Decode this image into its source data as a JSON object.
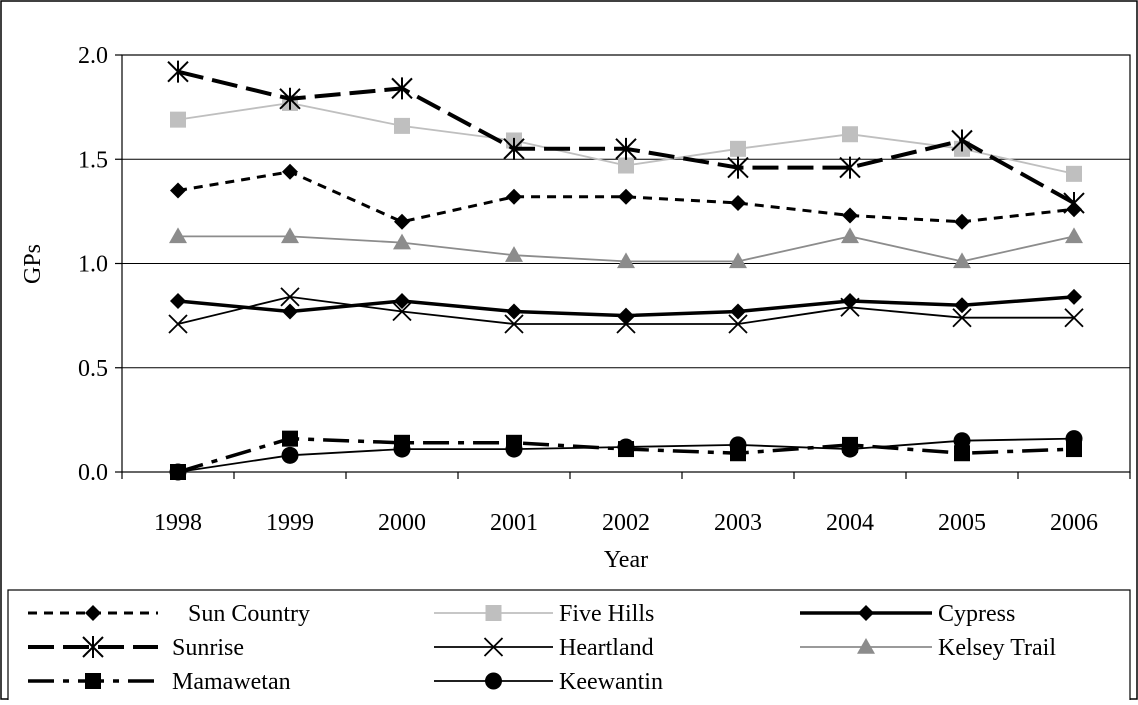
{
  "chart_data": {
    "type": "line",
    "title": "",
    "xlabel": "Year",
    "ylabel": "GPs",
    "x": [
      "1998",
      "1999",
      "2000",
      "2001",
      "2002",
      "2003",
      "2004",
      "2005",
      "2006"
    ],
    "ylim": [
      0,
      2
    ],
    "yticks": [
      "0.0",
      "0.5",
      "1.0",
      "1.5",
      "2.0"
    ],
    "grid": "horizontal",
    "legend_position": "bottom",
    "series": [
      {
        "name": "Sun Country",
        "values": [
          1.35,
          1.44,
          1.2,
          1.32,
          1.32,
          1.29,
          1.23,
          1.2,
          1.26
        ],
        "color": "#000000",
        "style": "dashed",
        "marker": "diamond"
      },
      {
        "name": "Five Hills",
        "values": [
          1.69,
          1.77,
          1.66,
          1.59,
          1.47,
          1.55,
          1.62,
          1.55,
          1.43
        ],
        "color": "#bfbfbf",
        "style": "solid",
        "marker": "square"
      },
      {
        "name": "Cypress",
        "values": [
          0.82,
          0.77,
          0.82,
          0.77,
          0.75,
          0.77,
          0.82,
          0.8,
          0.84
        ],
        "color": "#000000",
        "style": "solid-thick",
        "marker": "diamond"
      },
      {
        "name": "Sunrise",
        "values": [
          1.92,
          1.79,
          1.84,
          1.55,
          1.55,
          1.46,
          1.46,
          1.59,
          1.29
        ],
        "color": "#000000",
        "style": "longdash",
        "marker": "asterisk"
      },
      {
        "name": "Heartland",
        "values": [
          0.71,
          0.84,
          0.77,
          0.71,
          0.71,
          0.71,
          0.79,
          0.74,
          0.74
        ],
        "color": "#000000",
        "style": "solid",
        "marker": "x"
      },
      {
        "name": "Kelsey Trail",
        "values": [
          1.13,
          1.13,
          1.1,
          1.04,
          1.01,
          1.01,
          1.13,
          1.01,
          1.13
        ],
        "color": "#8c8c8c",
        "style": "solid",
        "marker": "triangle"
      },
      {
        "name": "Mamawetan",
        "values": [
          0.0,
          0.16,
          0.14,
          0.14,
          0.11,
          0.09,
          0.13,
          0.09,
          0.11
        ],
        "color": "#000000",
        "style": "dashdot",
        "marker": "square"
      },
      {
        "name": "Keewantin",
        "values": [
          0.0,
          0.08,
          0.11,
          0.11,
          0.12,
          0.13,
          0.11,
          0.15,
          0.16
        ],
        "color": "#000000",
        "style": "solid",
        "marker": "circle"
      }
    ]
  }
}
